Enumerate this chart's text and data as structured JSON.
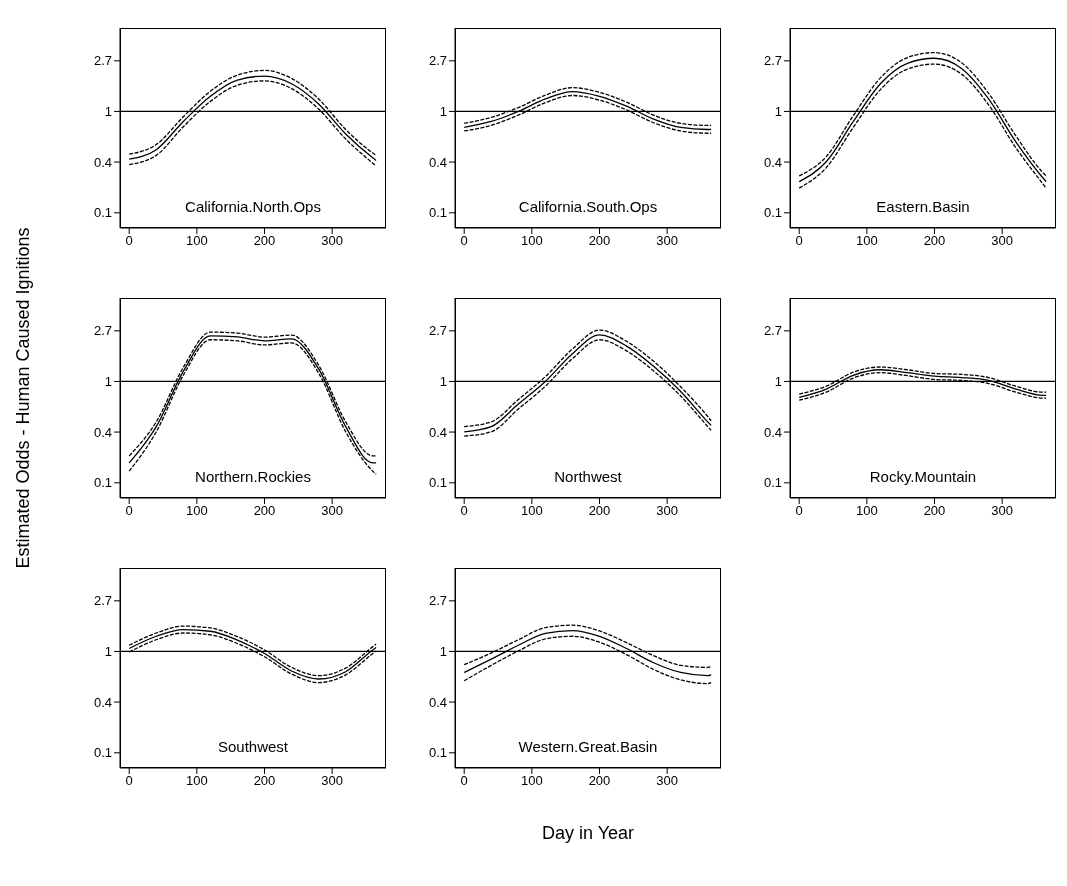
{
  "chart_data": [
    {
      "type": "line",
      "title": "California.North.Ops",
      "x": [
        0,
        40,
        80,
        120,
        160,
        200,
        240,
        280,
        320,
        360,
        365
      ],
      "xlim": [
        -13.6,
        379.6
      ],
      "xticks": [
        0,
        100,
        200,
        300
      ],
      "ylim": [
        0.1,
        5.2
      ],
      "yticks": [
        {
          "value": 0.135,
          "label": "0.1"
        },
        {
          "value": 0.368,
          "label": "0.4"
        },
        {
          "value": 1,
          "label": "1"
        },
        {
          "value": 2.718,
          "label": "2.7"
        }
      ],
      "log": true,
      "grid": false,
      "legend": false,
      "ref_lines": [
        {
          "axis": "y",
          "value": 1,
          "color": "#000000"
        }
      ],
      "series": [
        {
          "color": "#000000",
          "line_style": "dashed",
          "values": [
            0.35,
            0.42,
            0.74,
            1.22,
            1.68,
            1.83,
            1.57,
            1.05,
            0.58,
            0.36,
            0.34
          ]
        },
        {
          "color": "#000000",
          "line_style": "solid",
          "values": [
            0.39,
            0.47,
            0.82,
            1.35,
            1.86,
            2.01,
            1.73,
            1.16,
            0.64,
            0.4,
            0.38
          ]
        },
        {
          "color": "#000000",
          "line_style": "dashed",
          "values": [
            0.43,
            0.52,
            0.9,
            1.49,
            2.05,
            2.25,
            1.92,
            1.28,
            0.7,
            0.44,
            0.42
          ]
        }
      ]
    },
    {
      "type": "line",
      "title": "California.South.Ops",
      "x": [
        0,
        40,
        80,
        120,
        160,
        200,
        240,
        280,
        320,
        360,
        365
      ],
      "xlim": [
        -13.6,
        379.6
      ],
      "xticks": [
        0,
        100,
        200,
        300
      ],
      "ylim": [
        0.1,
        5.2
      ],
      "yticks": [
        {
          "value": 0.135,
          "label": "0.1"
        },
        {
          "value": 0.368,
          "label": "0.4"
        },
        {
          "value": 1,
          "label": "1"
        },
        {
          "value": 2.718,
          "label": "2.7"
        }
      ],
      "log": true,
      "grid": false,
      "legend": false,
      "ref_lines": [
        {
          "axis": "y",
          "value": 1,
          "color": "#000000"
        }
      ],
      "series": [
        {
          "color": "#000000",
          "line_style": "dashed",
          "values": [
            0.68,
            0.76,
            0.93,
            1.19,
            1.37,
            1.25,
            1.03,
            0.8,
            0.68,
            0.65,
            0.65
          ]
        },
        {
          "color": "#000000",
          "line_style": "solid",
          "values": [
            0.73,
            0.82,
            1.0,
            1.28,
            1.48,
            1.35,
            1.11,
            0.86,
            0.73,
            0.7,
            0.7
          ]
        },
        {
          "color": "#000000",
          "line_style": "dashed",
          "values": [
            0.79,
            0.89,
            1.08,
            1.38,
            1.6,
            1.46,
            1.2,
            0.93,
            0.79,
            0.76,
            0.76
          ]
        }
      ]
    },
    {
      "type": "line",
      "title": "Eastern.Basin",
      "x": [
        0,
        40,
        80,
        120,
        160,
        200,
        240,
        280,
        320,
        360,
        365
      ],
      "xlim": [
        -13.6,
        379.6
      ],
      "xticks": [
        0,
        100,
        200,
        300
      ],
      "ylim": [
        0.1,
        5.2
      ],
      "yticks": [
        {
          "value": 0.135,
          "label": "0.1"
        },
        {
          "value": 0.368,
          "label": "0.4"
        },
        {
          "value": 1,
          "label": "1"
        },
        {
          "value": 2.718,
          "label": "2.7"
        }
      ],
      "log": true,
      "grid": false,
      "legend": false,
      "ref_lines": [
        {
          "axis": "y",
          "value": 1,
          "color": "#000000"
        }
      ],
      "series": [
        {
          "color": "#000000",
          "line_style": "dashed",
          "values": [
            0.22,
            0.33,
            0.73,
            1.54,
            2.31,
            2.55,
            2.09,
            1.14,
            0.49,
            0.24,
            0.22
          ]
        },
        {
          "color": "#000000",
          "line_style": "solid",
          "values": [
            0.25,
            0.37,
            0.82,
            1.73,
            2.59,
            2.86,
            2.34,
            1.28,
            0.55,
            0.27,
            0.25
          ]
        },
        {
          "color": "#000000",
          "line_style": "dashed",
          "values": [
            0.28,
            0.41,
            0.92,
            1.94,
            2.9,
            3.2,
            2.62,
            1.43,
            0.62,
            0.3,
            0.28
          ]
        }
      ]
    },
    {
      "type": "line",
      "title": "Northern.Rockies",
      "ylabel": "Estimated Odds - Human Caused Ignitions",
      "x": [
        0,
        40,
        80,
        120,
        160,
        200,
        240,
        280,
        320,
        360,
        365
      ],
      "xlim": [
        -13.6,
        379.6
      ],
      "xticks": [
        0,
        100,
        200,
        300
      ],
      "ylim": [
        0.1,
        5.2
      ],
      "yticks": [
        {
          "value": 0.135,
          "label": "0.1"
        },
        {
          "value": 0.368,
          "label": "0.4"
        },
        {
          "value": 1,
          "label": "1"
        },
        {
          "value": 2.718,
          "label": "2.7"
        }
      ],
      "log": true,
      "grid": false,
      "legend": false,
      "ref_lines": [
        {
          "axis": "y",
          "value": 1,
          "color": "#000000"
        }
      ],
      "series": [
        {
          "color": "#000000",
          "line_style": "dashed",
          "values": [
            0.17,
            0.37,
            1.13,
            2.28,
            2.23,
            2.06,
            2.14,
            1.18,
            0.37,
            0.17,
            0.16
          ]
        },
        {
          "color": "#000000",
          "line_style": "solid",
          "values": [
            0.2,
            0.41,
            1.22,
            2.46,
            2.41,
            2.23,
            2.32,
            1.28,
            0.41,
            0.2,
            0.2
          ]
        },
        {
          "color": "#000000",
          "line_style": "dashed",
          "values": [
            0.23,
            0.45,
            1.32,
            2.65,
            2.6,
            2.4,
            2.5,
            1.38,
            0.45,
            0.23,
            0.23
          ]
        }
      ]
    },
    {
      "type": "line",
      "title": "Northwest",
      "x": [
        0,
        40,
        80,
        120,
        160,
        200,
        240,
        280,
        320,
        360,
        365
      ],
      "xlim": [
        -13.6,
        379.6
      ],
      "xticks": [
        0,
        100,
        200,
        300
      ],
      "ylim": [
        0.1,
        5.2
      ],
      "yticks": [
        {
          "value": 0.135,
          "label": "0.1"
        },
        {
          "value": 0.368,
          "label": "0.4"
        },
        {
          "value": 1,
          "label": "1"
        },
        {
          "value": 2.718,
          "label": "2.7"
        }
      ],
      "log": true,
      "grid": false,
      "legend": false,
      "ref_lines": [
        {
          "axis": "y",
          "value": 1,
          "color": "#000000"
        }
      ],
      "series": [
        {
          "color": "#000000",
          "line_style": "dashed",
          "values": [
            0.34,
            0.37,
            0.58,
            0.91,
            1.57,
            2.28,
            1.83,
            1.23,
            0.75,
            0.41,
            0.38
          ]
        },
        {
          "color": "#000000",
          "line_style": "solid",
          "values": [
            0.37,
            0.41,
            0.64,
            1.0,
            1.73,
            2.51,
            2.01,
            1.35,
            0.82,
            0.45,
            0.42
          ]
        },
        {
          "color": "#000000",
          "line_style": "dashed",
          "values": [
            0.41,
            0.45,
            0.7,
            1.1,
            1.9,
            2.76,
            2.21,
            1.49,
            0.9,
            0.5,
            0.46
          ]
        }
      ]
    },
    {
      "type": "line",
      "title": "Rocky.Mountain",
      "x": [
        0,
        40,
        80,
        120,
        160,
        200,
        240,
        280,
        320,
        360,
        365
      ],
      "xlim": [
        -13.6,
        379.6
      ],
      "xticks": [
        0,
        100,
        200,
        300
      ],
      "ylim": [
        0.1,
        5.2
      ],
      "yticks": [
        {
          "value": 0.135,
          "label": "0.1"
        },
        {
          "value": 0.368,
          "label": "0.4"
        },
        {
          "value": 1,
          "label": "1"
        },
        {
          "value": 2.718,
          "label": "2.7"
        }
      ],
      "log": true,
      "grid": false,
      "legend": false,
      "ref_lines": [
        {
          "axis": "y",
          "value": 1,
          "color": "#000000"
        }
      ],
      "series": [
        {
          "color": "#000000",
          "line_style": "dashed",
          "values": [
            0.69,
            0.81,
            1.07,
            1.19,
            1.12,
            1.04,
            1.02,
            0.96,
            0.81,
            0.72,
            0.72
          ]
        },
        {
          "color": "#000000",
          "line_style": "solid",
          "values": [
            0.73,
            0.86,
            1.13,
            1.26,
            1.19,
            1.11,
            1.08,
            1.02,
            0.86,
            0.76,
            0.76
          ]
        },
        {
          "color": "#000000",
          "line_style": "dashed",
          "values": [
            0.78,
            0.91,
            1.2,
            1.33,
            1.26,
            1.17,
            1.15,
            1.08,
            0.91,
            0.81,
            0.81
          ]
        }
      ]
    },
    {
      "type": "line",
      "title": "Southwest",
      "x": [
        0,
        40,
        80,
        120,
        160,
        200,
        240,
        280,
        320,
        360,
        365
      ],
      "xlim": [
        -13.6,
        379.6
      ],
      "xticks": [
        0,
        100,
        200,
        300
      ],
      "ylim": [
        0.1,
        5.2
      ],
      "yticks": [
        {
          "value": 0.135,
          "label": "0.1"
        },
        {
          "value": 0.368,
          "label": "0.4"
        },
        {
          "value": 1,
          "label": "1"
        },
        {
          "value": 2.718,
          "label": "2.7"
        }
      ],
      "log": true,
      "grid": false,
      "legend": false,
      "ref_lines": [
        {
          "axis": "y",
          "value": 1,
          "color": "#000000"
        }
      ],
      "series": [
        {
          "color": "#000000",
          "line_style": "dashed",
          "values": [
            0.99,
            1.26,
            1.44,
            1.39,
            1.17,
            0.9,
            0.64,
            0.54,
            0.63,
            0.96,
            1.01
          ]
        },
        {
          "color": "#000000",
          "line_style": "solid",
          "values": [
            1.06,
            1.35,
            1.54,
            1.49,
            1.25,
            0.96,
            0.68,
            0.58,
            0.67,
            1.03,
            1.08
          ]
        },
        {
          "color": "#000000",
          "line_style": "dashed",
          "values": [
            1.13,
            1.44,
            1.65,
            1.59,
            1.34,
            1.03,
            0.73,
            0.62,
            0.72,
            1.1,
            1.16
          ]
        }
      ]
    },
    {
      "type": "line",
      "title": "Western.Great.Basin",
      "xlabel": "Day in Year",
      "x": [
        0,
        40,
        80,
        120,
        160,
        200,
        240,
        280,
        320,
        360,
        365
      ],
      "xlim": [
        -13.6,
        379.6
      ],
      "xticks": [
        0,
        100,
        200,
        300
      ],
      "ylim": [
        0.1,
        5.2
      ],
      "yticks": [
        {
          "value": 0.135,
          "label": "0.1"
        },
        {
          "value": 0.368,
          "label": "0.4"
        },
        {
          "value": 1,
          "label": "1"
        },
        {
          "value": 2.718,
          "label": "2.7"
        }
      ],
      "log": true,
      "grid": false,
      "legend": false,
      "ref_lines": [
        {
          "axis": "y",
          "value": 1,
          "color": "#000000"
        }
      ],
      "series": [
        {
          "color": "#000000",
          "line_style": "dashed",
          "values": [
            0.56,
            0.76,
            1.01,
            1.28,
            1.35,
            1.2,
            0.94,
            0.7,
            0.57,
            0.53,
            0.54
          ]
        },
        {
          "color": "#000000",
          "line_style": "solid",
          "values": [
            0.66,
            0.86,
            1.13,
            1.43,
            1.51,
            1.35,
            1.06,
            0.8,
            0.66,
            0.62,
            0.63
          ]
        },
        {
          "color": "#000000",
          "line_style": "dashed",
          "values": [
            0.77,
            0.97,
            1.26,
            1.6,
            1.68,
            1.5,
            1.19,
            0.92,
            0.76,
            0.73,
            0.74
          ]
        }
      ]
    }
  ]
}
